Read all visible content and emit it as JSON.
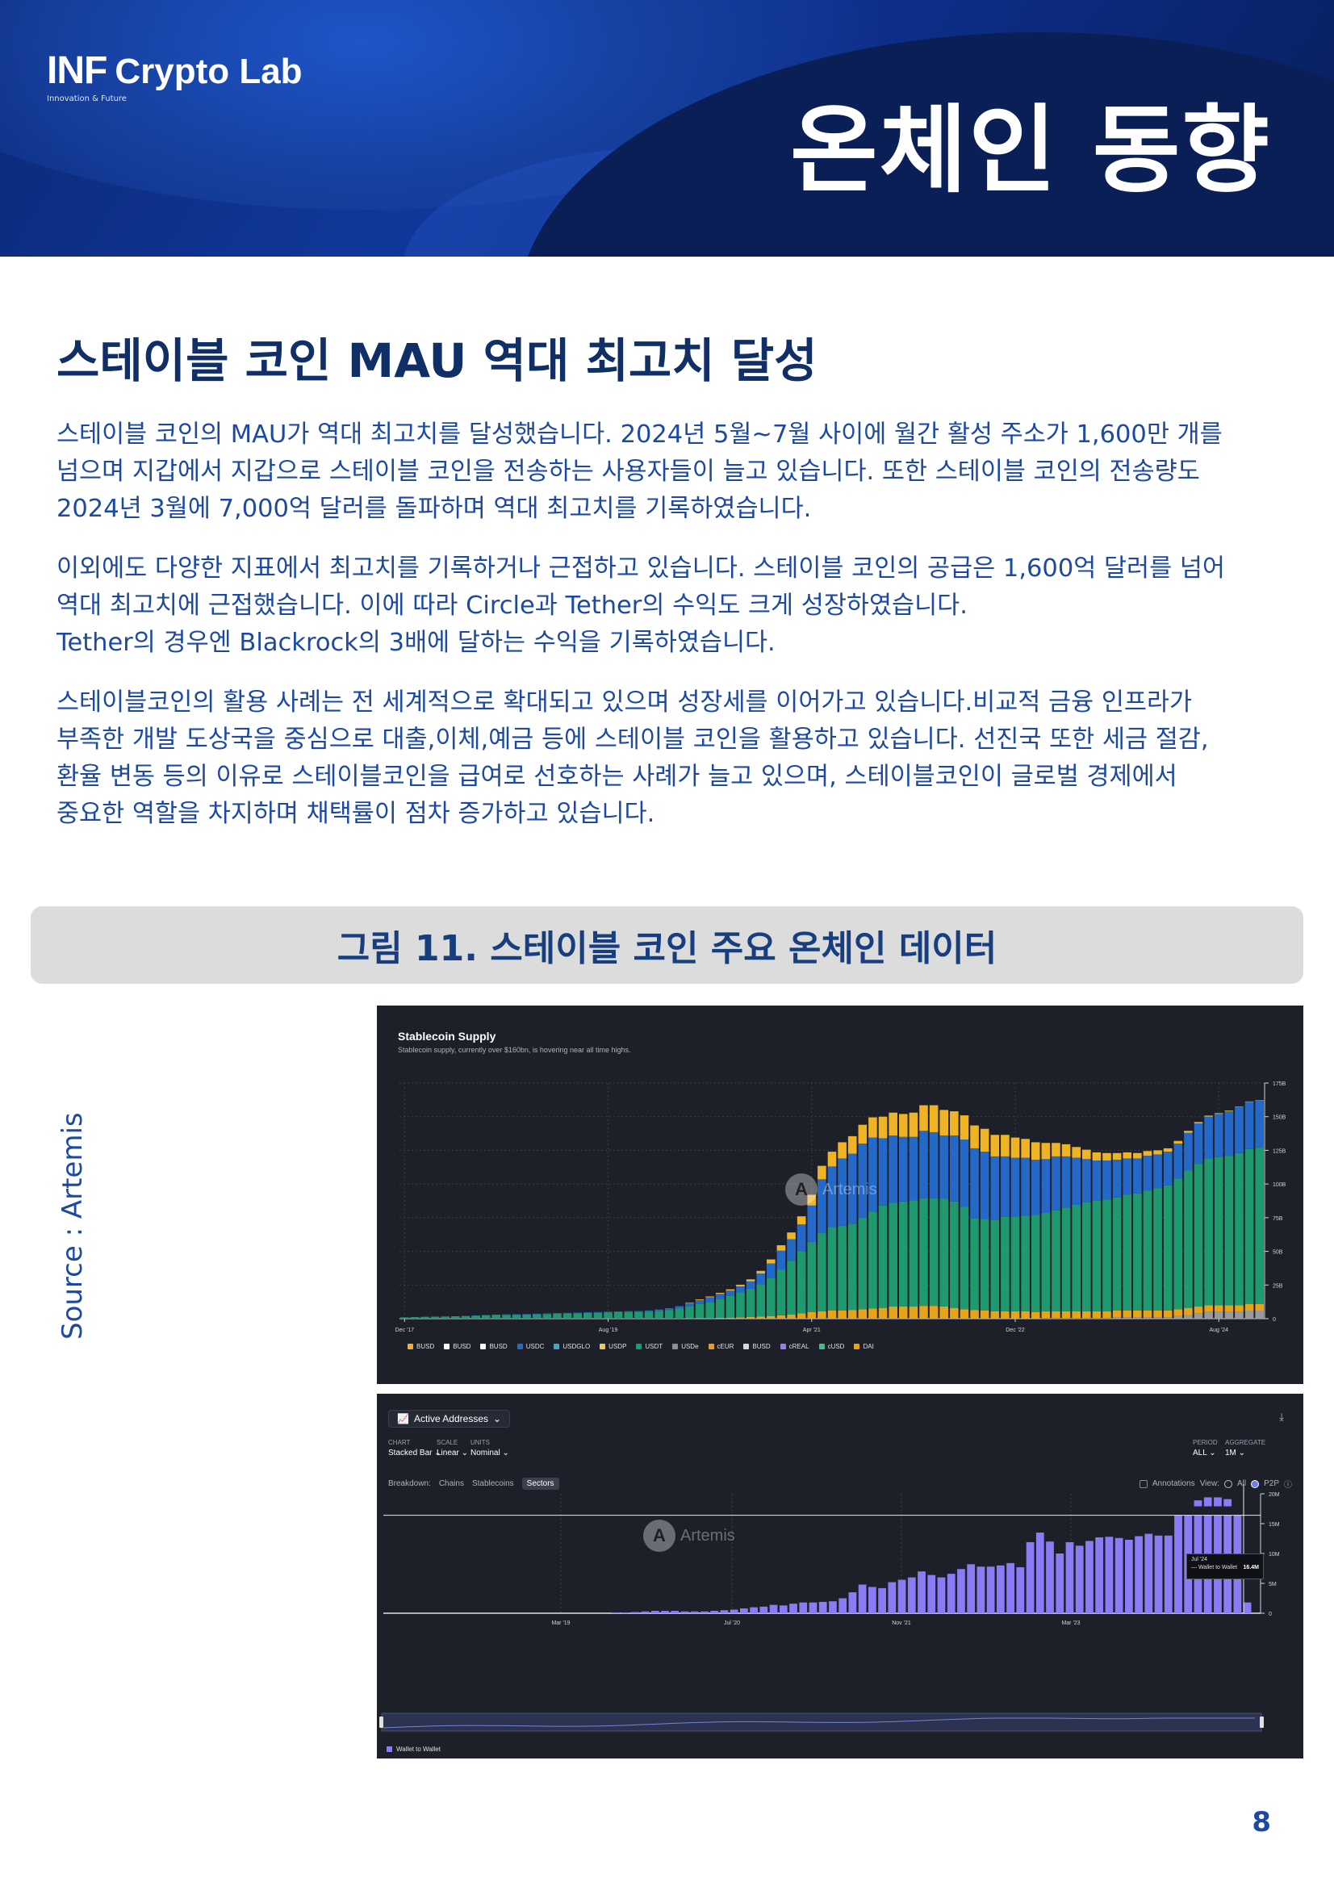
{
  "header": {
    "logo_main": "INF",
    "logo_sub": "Crypto Lab",
    "logo_tagline": "Innovation & Future",
    "title": "온체인 동향"
  },
  "headline": "스테이블 코인 MAU 역대 최고치 달성",
  "paragraphs": [
    [
      "스테이블 코인의 MAU가 역대 최고치를 달성했습니다. 2024년 5월~7월 사이에 월간 활성 주소가 1,600만 개를",
      "넘으며 지갑에서 지갑으로 스테이블 코인을 전송하는 사용자들이 늘고 있습니다. 또한 스테이블 코인의 전송량도",
      "2024년 3월에 7,000억 달러를 돌파하며 역대 최고치를 기록하였습니다."
    ],
    [
      "이외에도 다양한 지표에서 최고치를 기록하거나 근접하고 있습니다. 스테이블 코인의 공급은 1,600억 달러를 넘어",
      "역대 최고치에 근접했습니다. 이에 따라 Circle과 Tether의 수익도 크게 성장하였습니다.",
      "Tether의 경우엔 Blackrock의 3배에 달하는 수익을 기록하였습니다."
    ],
    [
      "스테이블코인의 활용 사례는 전 세계적으로 확대되고 있으며 성장세를 이어가고 있습니다.비교적 금융 인프라가",
      "부족한 개발 도상국을 중심으로 대출,이체,예금 등에 스테이블 코인을 활용하고 있습니다. 선진국 또한 세금 절감,",
      "환율 변동 등의 이유로 스테이블코인을 급여로 선호하는 사례가 늘고 있으며,  스테이블코인이 글로벌 경제에서",
      "중요한 역할을 차지하며 채택률이 점차 증가하고 있습니다."
    ]
  ],
  "figure_caption": "그림 11. 스테이블 코인 주요 온체인 데이터",
  "source": "Source : Artemis",
  "page_number": "8",
  "watermark": {
    "icon": "A",
    "label": "Artemis"
  },
  "supply_chart": {
    "title": "Stablecoin Supply",
    "subtitle": "Stablecoin supply, currently over $160bn, is hovering near all time highs."
  },
  "addresses_chart": {
    "metric": "Active Addresses",
    "controls": [
      {
        "label": "CHART",
        "value": "Stacked Bar"
      },
      {
        "label": "SCALE",
        "value": "Linear"
      },
      {
        "label": "UNITS",
        "value": "Nominal"
      }
    ],
    "period": {
      "label": "PERIOD",
      "value": "ALL"
    },
    "aggregate": {
      "label": "AGGREGATE",
      "value": "1M"
    },
    "breakdown_label": "Breakdown:",
    "breakdown_tabs": [
      "Chains",
      "Stablecoins",
      "Sectors"
    ],
    "annotations_label": "Annotations",
    "view_label": "View:",
    "view_options": [
      "All",
      "P2P"
    ],
    "tooltip": {
      "date": "Jul '24",
      "series": "Wallet to Wallet",
      "value": "16.4M"
    }
  },
  "colors": {
    "usdt": "#1f9a6e",
    "usdc": "#2468c8",
    "busd": "#f0b323",
    "dai": "#e8a317",
    "other": "#9a9a9a",
    "wallet": "#8b7cf6"
  },
  "chart_data": [
    {
      "type": "bar",
      "stacked": true,
      "title": "Stablecoin Supply",
      "x_ticks": [
        "Dec '17",
        "Aug '19",
        "Apr '21",
        "Dec '22",
        "Aug '24"
      ],
      "y_ticks": [
        "0",
        "25B",
        "50B",
        "75B",
        "100B",
        "125B",
        "150B",
        "175B"
      ],
      "ylim": [
        0,
        175
      ],
      "legend": [
        "BUSD",
        "BUSD",
        "BUSD",
        "USDC",
        "USDGLO",
        "USDP",
        "USDT",
        "USDe",
        "cEUR",
        "BUSD",
        "cREAL",
        "cUSD",
        "DAI"
      ],
      "legend_colors": [
        "#f0b323",
        "#ffffff",
        "#ffffff",
        "#2468c8",
        "#4aa3c4",
        "#f2c94c",
        "#1f9a6e",
        "#8a8f99",
        "#e39b2d",
        "#d6d9df",
        "#9a7cf0",
        "#3fbf7f",
        "#e8a317"
      ],
      "series_order": [
        "Other",
        "DAI",
        "USDT",
        "USDC",
        "BUSD"
      ],
      "months_note": "Monthly bars Dec 2017 – Aug 2024",
      "stacks": [
        [
          0,
          0,
          1,
          0,
          0
        ],
        [
          0,
          0,
          1.2,
          0,
          0
        ],
        [
          0,
          0,
          1.4,
          0,
          0
        ],
        [
          0,
          0,
          1.5,
          0,
          0
        ],
        [
          0,
          0,
          1.6,
          0,
          0
        ],
        [
          0,
          0,
          1.8,
          0,
          0
        ],
        [
          0,
          0,
          2,
          0,
          0
        ],
        [
          0,
          0,
          2.2,
          0.2,
          0
        ],
        [
          0,
          0,
          2.5,
          0.3,
          0
        ],
        [
          0,
          0,
          2.7,
          0.3,
          0
        ],
        [
          0,
          0,
          2.8,
          0.4,
          0
        ],
        [
          0,
          0,
          2.9,
          0.4,
          0
        ],
        [
          0,
          0,
          3,
          0.4,
          0
        ],
        [
          0,
          0,
          3.2,
          0.5,
          0
        ],
        [
          0,
          0,
          3.4,
          0.5,
          0
        ],
        [
          0,
          0,
          3.6,
          0.5,
          0
        ],
        [
          0,
          0,
          3.8,
          0.5,
          0
        ],
        [
          0,
          0,
          4,
          0.5,
          0
        ],
        [
          0,
          0,
          4.2,
          0.5,
          0
        ],
        [
          0,
          0,
          4.4,
          0.5,
          0
        ],
        [
          0,
          0,
          4.6,
          0.6,
          0
        ],
        [
          0,
          0,
          4.8,
          0.6,
          0
        ],
        [
          0,
          0,
          4.9,
          0.7,
          0
        ],
        [
          0,
          0,
          5,
          0.7,
          0
        ],
        [
          0,
          0,
          5.3,
          0.8,
          0
        ],
        [
          0,
          0,
          5.8,
          1,
          0
        ],
        [
          0,
          0,
          6.5,
          1.3,
          0
        ],
        [
          0,
          0,
          7.5,
          1.8,
          0
        ],
        [
          0,
          0.2,
          9,
          2.5,
          0.3
        ],
        [
          0,
          0.3,
          10.5,
          3,
          0.5
        ],
        [
          0,
          0.4,
          12,
          3.5,
          0.6
        ],
        [
          0,
          0.6,
          14,
          3.8,
          0.8
        ],
        [
          0,
          0.8,
          16,
          4,
          1
        ],
        [
          0,
          1,
          18.5,
          4.5,
          1.2
        ],
        [
          0,
          1.2,
          21,
          5.5,
          1.5
        ],
        [
          0,
          1.5,
          24,
          8,
          2
        ],
        [
          0,
          2,
          28,
          11,
          3
        ],
        [
          0,
          2.5,
          34,
          14,
          4
        ],
        [
          0,
          3,
          40,
          16,
          5
        ],
        [
          0,
          4,
          46,
          20,
          6
        ],
        [
          0,
          5,
          52,
          27,
          8
        ],
        [
          0,
          5.5,
          58,
          40,
          10
        ],
        [
          0,
          6,
          62,
          45,
          11
        ],
        [
          0,
          6,
          63,
          50,
          12
        ],
        [
          0,
          6.5,
          64,
          52,
          13
        ],
        [
          0,
          7,
          68,
          55,
          14
        ],
        [
          0,
          7.5,
          72,
          55,
          15
        ],
        [
          0,
          8,
          76,
          50,
          16
        ],
        [
          0,
          9,
          77,
          50,
          17
        ],
        [
          0,
          9,
          78,
          48,
          17
        ],
        [
          0,
          9,
          79,
          47,
          18
        ],
        [
          0,
          9.5,
          80,
          50,
          19
        ],
        [
          0,
          9.5,
          80,
          49,
          20
        ],
        [
          0,
          9,
          80,
          47,
          19
        ],
        [
          0,
          8,
          79,
          49,
          18
        ],
        [
          0,
          7,
          76,
          50,
          18
        ],
        [
          0,
          6.5,
          68,
          52,
          17
        ],
        [
          0,
          6,
          68,
          50,
          17
        ],
        [
          0,
          5.5,
          68,
          47,
          16
        ],
        [
          0,
          5.5,
          70,
          45,
          16
        ],
        [
          0,
          5.5,
          70,
          44,
          15
        ],
        [
          0,
          5.5,
          71,
          43,
          14
        ],
        [
          0,
          5,
          72,
          41,
          13
        ],
        [
          0.5,
          5,
          73,
          40,
          12
        ],
        [
          0.5,
          5,
          75,
          40,
          10
        ],
        [
          0.5,
          5,
          77,
          38,
          9
        ],
        [
          0.5,
          5,
          79,
          35,
          8
        ],
        [
          0.5,
          5,
          81,
          32,
          7
        ],
        [
          0.5,
          5,
          82,
          30,
          6
        ],
        [
          0.5,
          5,
          83,
          29,
          5.5
        ],
        [
          1,
          5,
          84,
          28,
          5
        ],
        [
          1,
          5,
          86,
          27,
          4.5
        ],
        [
          1,
          5,
          87,
          26,
          4
        ],
        [
          1,
          5,
          89,
          26,
          3.5
        ],
        [
          1,
          5,
          91,
          25,
          3
        ],
        [
          1,
          5,
          93,
          25,
          2.5
        ],
        [
          2,
          5,
          97,
          26,
          2
        ],
        [
          3,
          5,
          102,
          28,
          1.5
        ],
        [
          4,
          5,
          106,
          30,
          1
        ],
        [
          5,
          5,
          109,
          31,
          0.8
        ],
        [
          5,
          5,
          110,
          32,
          0.6
        ],
        [
          5,
          5,
          111,
          33,
          0.5
        ],
        [
          5,
          5,
          113,
          34,
          0.4
        ],
        [
          6,
          5,
          115,
          35,
          0.3
        ],
        [
          6,
          5,
          116,
          35,
          0.3
        ]
      ]
    },
    {
      "type": "bar",
      "title": "Active Addresses",
      "series": [
        {
          "name": "Wallet to Wallet",
          "color": "#8b7cf6"
        }
      ],
      "x_ticks": [
        "Mar '19",
        "Jul '20",
        "Nov '21",
        "Mar '23"
      ],
      "y_ticks": [
        "0",
        "5M",
        "10M",
        "15M",
        "20M"
      ],
      "ylim": [
        0,
        20
      ],
      "values_m": [
        0.1,
        0.1,
        0.2,
        0.3,
        0.4,
        0.4,
        0.4,
        0.3,
        0.3,
        0.3,
        0.4,
        0.5,
        0.6,
        0.8,
        1.0,
        1.1,
        1.4,
        1.3,
        1.6,
        1.8,
        1.8,
        1.9,
        2.0,
        2.5,
        3.5,
        4.8,
        4.4,
        4.2,
        5.2,
        5.6,
        6.0,
        7.0,
        6.4,
        6.0,
        6.6,
        7.4,
        8.2,
        7.8,
        7.8,
        8.0,
        8.4,
        7.7,
        11.9,
        13.5,
        12.0,
        10.0,
        11.9,
        11.3,
        12.1,
        12.7,
        12.8,
        12.6,
        12.3,
        12.9,
        13.3,
        13.0,
        13.0,
        16.4,
        16.4,
        16.4,
        16.4,
        16.4,
        16.4,
        16.4,
        1.8
      ],
      "overlay_extra_m": [
        0,
        0,
        0,
        0,
        0,
        0,
        0,
        0,
        0,
        0,
        0,
        0,
        0,
        0,
        0,
        0,
        0,
        0,
        0,
        0,
        0,
        0,
        0,
        0,
        0,
        0,
        0,
        0,
        0,
        0,
        0,
        0,
        0,
        0,
        0,
        0,
        0,
        0,
        0,
        0,
        0,
        0,
        0,
        0,
        0,
        0,
        0,
        0,
        0,
        0,
        0,
        0,
        0,
        0,
        0,
        0,
        0,
        0,
        0,
        1.0,
        1.5,
        1.5,
        1.2,
        0,
        0
      ]
    }
  ]
}
